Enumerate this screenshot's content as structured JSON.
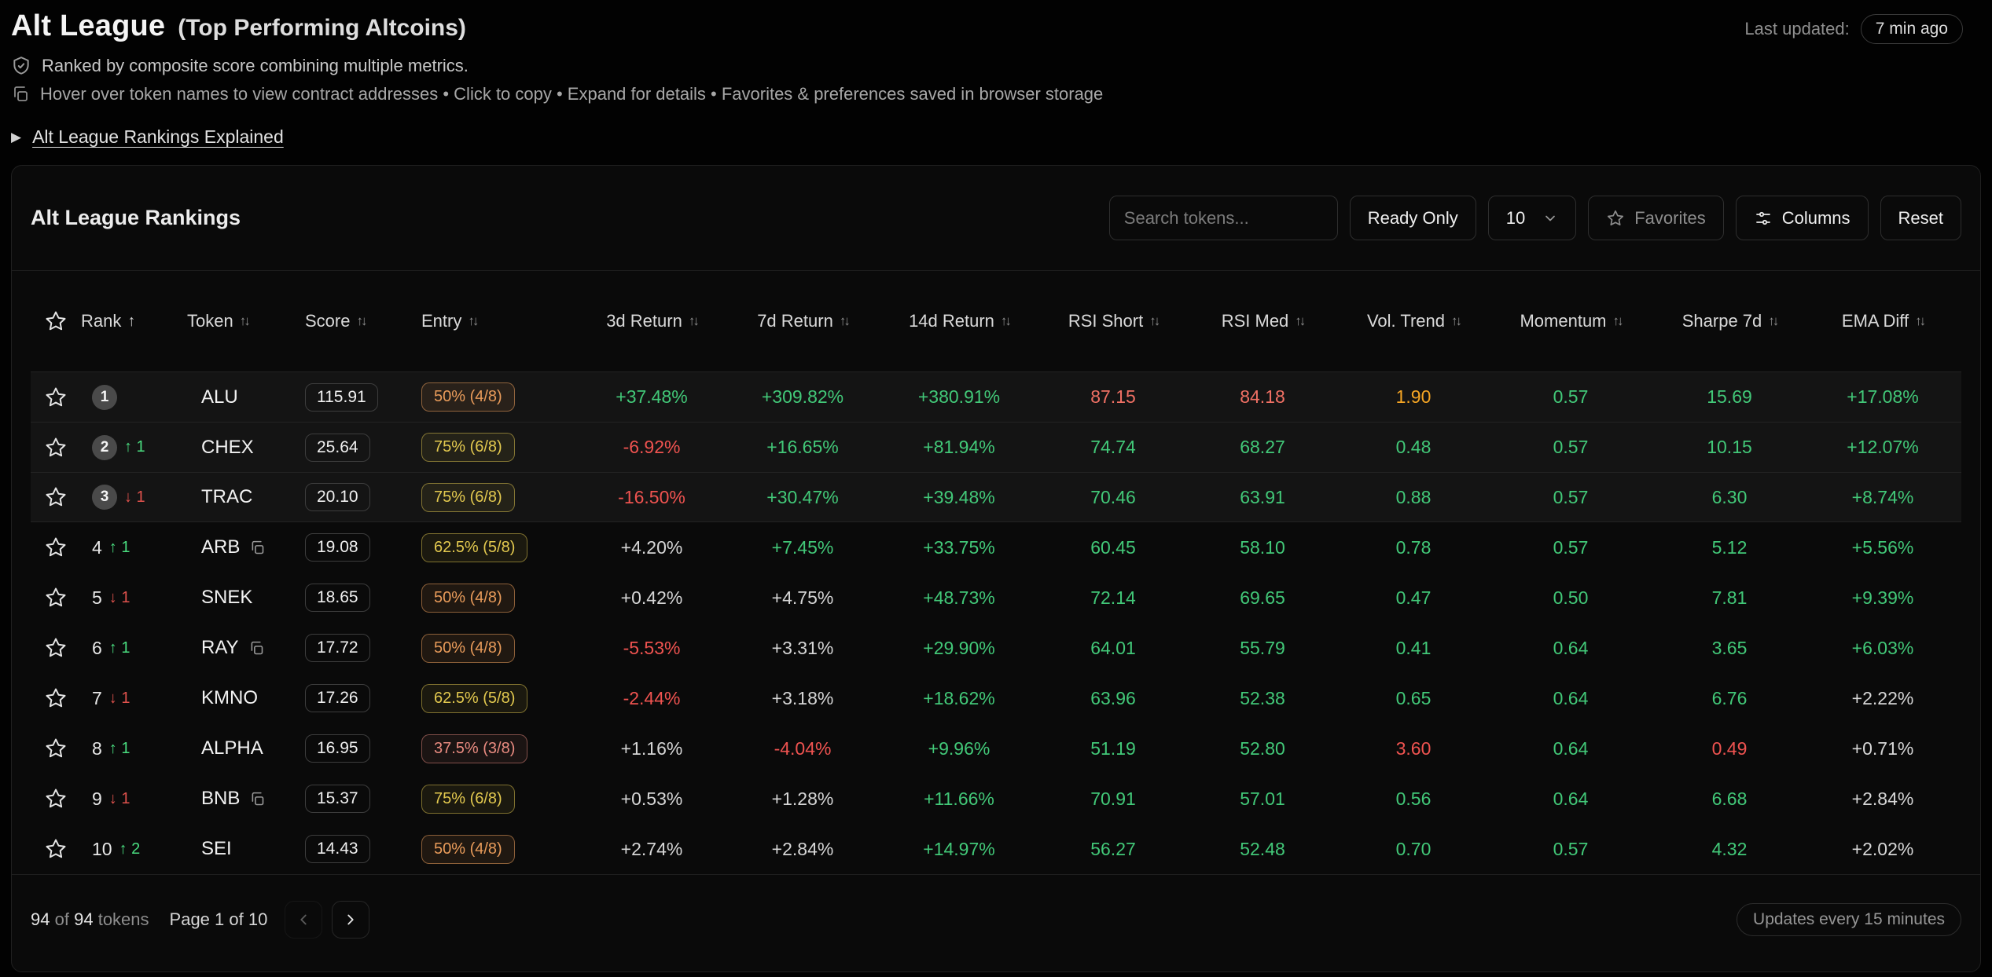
{
  "page": {
    "title": "Alt League",
    "subtitle": "(Top Performing Altcoins)",
    "last_updated_label": "Last updated:",
    "last_updated_value": "7 min ago",
    "info_primary": "Ranked by composite score combining multiple metrics.",
    "info_secondary": "Hover over token names to view contract addresses • Click to copy • Expand for details • Favorites & preferences saved in browser storage",
    "details_link": "Alt League Rankings Explained"
  },
  "card": {
    "title": "Alt League Rankings",
    "toolbar": {
      "search_placeholder": "Search tokens...",
      "ready_only_label": "Ready Only",
      "page_size": "10",
      "favorites_label": "Favorites",
      "columns_label": "Columns",
      "reset_label": "Reset"
    },
    "footer": {
      "shown_count": "94",
      "of_label": "of",
      "total_count": "94",
      "tokens_label": "tokens",
      "page_label": "Page 1 of 10",
      "updates_badge": "Updates every 15 minutes"
    }
  },
  "colors": {
    "positive_green": "#42c878",
    "negative_red": "#ef5350",
    "overbought_salmon": "#ef7064",
    "warning_orange": "#f5a524",
    "neutral_text": "#d6d6d6",
    "entry_orange": "#e89b5a",
    "entry_yellow": "#e3c94f",
    "entry_red": "#e98b80"
  },
  "table": {
    "columns": [
      {
        "id": "favorite",
        "label": "",
        "sort": null,
        "icon": "star"
      },
      {
        "id": "rank",
        "label": "Rank",
        "sort": "asc"
      },
      {
        "id": "token",
        "label": "Token",
        "sort": "both"
      },
      {
        "id": "score",
        "label": "Score",
        "sort": "both"
      },
      {
        "id": "entry",
        "label": "Entry",
        "sort": "both"
      },
      {
        "id": "return_3d",
        "label": "3d Return",
        "sort": "both"
      },
      {
        "id": "return_7d",
        "label": "7d Return",
        "sort": "both"
      },
      {
        "id": "return_14d",
        "label": "14d Return",
        "sort": "both"
      },
      {
        "id": "rsi_short",
        "label": "RSI Short",
        "sort": "both"
      },
      {
        "id": "rsi_med",
        "label": "RSI Med",
        "sort": "both"
      },
      {
        "id": "vol_trend",
        "label": "Vol. Trend",
        "sort": "both"
      },
      {
        "id": "momentum",
        "label": "Momentum",
        "sort": "both"
      },
      {
        "id": "sharpe_7d",
        "label": "Sharpe 7d",
        "sort": "both"
      },
      {
        "id": "ema_diff",
        "label": "EMA Diff",
        "sort": "both"
      }
    ],
    "rows": [
      {
        "rank": "1",
        "top3": true,
        "change": null,
        "token": "ALU",
        "copy": false,
        "score": "115.91",
        "entry": {
          "text": "50% (4/8)",
          "tone": "orange"
        },
        "cells": [
          [
            "+37.48%",
            "green"
          ],
          [
            "+309.82%",
            "green"
          ],
          [
            "+380.91%",
            "green"
          ],
          [
            "87.15",
            "salmon"
          ],
          [
            "84.18",
            "salmon"
          ],
          [
            "1.90",
            "orange"
          ],
          [
            "0.57",
            "green"
          ],
          [
            "15.69",
            "green"
          ],
          [
            "+17.08%",
            "green"
          ]
        ]
      },
      {
        "rank": "2",
        "top3": true,
        "change": {
          "dir": "up",
          "amount": "1"
        },
        "token": "CHEX",
        "copy": false,
        "score": "25.64",
        "entry": {
          "text": "75% (6/8)",
          "tone": "yellow"
        },
        "cells": [
          [
            "-6.92%",
            "red"
          ],
          [
            "+16.65%",
            "green"
          ],
          [
            "+81.94%",
            "green"
          ],
          [
            "74.74",
            "green"
          ],
          [
            "68.27",
            "green"
          ],
          [
            "0.48",
            "green"
          ],
          [
            "0.57",
            "green"
          ],
          [
            "10.15",
            "green"
          ],
          [
            "+12.07%",
            "green"
          ]
        ]
      },
      {
        "rank": "3",
        "top3": true,
        "change": {
          "dir": "down",
          "amount": "1"
        },
        "token": "TRAC",
        "copy": false,
        "score": "20.10",
        "entry": {
          "text": "75% (6/8)",
          "tone": "yellow"
        },
        "cells": [
          [
            "-16.50%",
            "red"
          ],
          [
            "+30.47%",
            "green"
          ],
          [
            "+39.48%",
            "green"
          ],
          [
            "70.46",
            "green"
          ],
          [
            "63.91",
            "green"
          ],
          [
            "0.88",
            "green"
          ],
          [
            "0.57",
            "green"
          ],
          [
            "6.30",
            "green"
          ],
          [
            "+8.74%",
            "green"
          ]
        ]
      },
      {
        "rank": "4",
        "top3": false,
        "change": {
          "dir": "up",
          "amount": "1"
        },
        "token": "ARB",
        "copy": true,
        "score": "19.08",
        "entry": {
          "text": "62.5% (5/8)",
          "tone": "yellow"
        },
        "cells": [
          [
            "+4.20%",
            "neutral"
          ],
          [
            "+7.45%",
            "green"
          ],
          [
            "+33.75%",
            "green"
          ],
          [
            "60.45",
            "green"
          ],
          [
            "58.10",
            "green"
          ],
          [
            "0.78",
            "green"
          ],
          [
            "0.57",
            "green"
          ],
          [
            "5.12",
            "green"
          ],
          [
            "+5.56%",
            "green"
          ]
        ]
      },
      {
        "rank": "5",
        "top3": false,
        "change": {
          "dir": "down",
          "amount": "1"
        },
        "token": "SNEK",
        "copy": false,
        "score": "18.65",
        "entry": {
          "text": "50% (4/8)",
          "tone": "orange"
        },
        "cells": [
          [
            "+0.42%",
            "neutral"
          ],
          [
            "+4.75%",
            "neutral"
          ],
          [
            "+48.73%",
            "green"
          ],
          [
            "72.14",
            "green"
          ],
          [
            "69.65",
            "green"
          ],
          [
            "0.47",
            "green"
          ],
          [
            "0.50",
            "green"
          ],
          [
            "7.81",
            "green"
          ],
          [
            "+9.39%",
            "green"
          ]
        ]
      },
      {
        "rank": "6",
        "top3": false,
        "change": {
          "dir": "up",
          "amount": "1"
        },
        "token": "RAY",
        "copy": true,
        "score": "17.72",
        "entry": {
          "text": "50% (4/8)",
          "tone": "orange"
        },
        "cells": [
          [
            "-5.53%",
            "red"
          ],
          [
            "+3.31%",
            "neutral"
          ],
          [
            "+29.90%",
            "green"
          ],
          [
            "64.01",
            "green"
          ],
          [
            "55.79",
            "green"
          ],
          [
            "0.41",
            "green"
          ],
          [
            "0.64",
            "green"
          ],
          [
            "3.65",
            "green"
          ],
          [
            "+6.03%",
            "green"
          ]
        ]
      },
      {
        "rank": "7",
        "top3": false,
        "change": {
          "dir": "down",
          "amount": "1"
        },
        "token": "KMNO",
        "copy": false,
        "score": "17.26",
        "entry": {
          "text": "62.5% (5/8)",
          "tone": "yellow"
        },
        "cells": [
          [
            "-2.44%",
            "red"
          ],
          [
            "+3.18%",
            "neutral"
          ],
          [
            "+18.62%",
            "green"
          ],
          [
            "63.96",
            "green"
          ],
          [
            "52.38",
            "green"
          ],
          [
            "0.65",
            "green"
          ],
          [
            "0.64",
            "green"
          ],
          [
            "6.76",
            "green"
          ],
          [
            "+2.22%",
            "neutral"
          ]
        ]
      },
      {
        "rank": "8",
        "top3": false,
        "change": {
          "dir": "up",
          "amount": "1"
        },
        "token": "ALPHA",
        "copy": false,
        "score": "16.95",
        "entry": {
          "text": "37.5% (3/8)",
          "tone": "red"
        },
        "cells": [
          [
            "+1.16%",
            "neutral"
          ],
          [
            "-4.04%",
            "red"
          ],
          [
            "+9.96%",
            "green"
          ],
          [
            "51.19",
            "green"
          ],
          [
            "52.80",
            "green"
          ],
          [
            "3.60",
            "red"
          ],
          [
            "0.64",
            "green"
          ],
          [
            "0.49",
            "red"
          ],
          [
            "+0.71%",
            "neutral"
          ]
        ]
      },
      {
        "rank": "9",
        "top3": false,
        "change": {
          "dir": "down",
          "amount": "1"
        },
        "token": "BNB",
        "copy": true,
        "score": "15.37",
        "entry": {
          "text": "75% (6/8)",
          "tone": "yellow"
        },
        "cells": [
          [
            "+0.53%",
            "neutral"
          ],
          [
            "+1.28%",
            "neutral"
          ],
          [
            "+11.66%",
            "green"
          ],
          [
            "70.91",
            "green"
          ],
          [
            "57.01",
            "green"
          ],
          [
            "0.56",
            "green"
          ],
          [
            "0.64",
            "green"
          ],
          [
            "6.68",
            "green"
          ],
          [
            "+2.84%",
            "neutral"
          ]
        ]
      },
      {
        "rank": "10",
        "top3": false,
        "change": {
          "dir": "up",
          "amount": "2"
        },
        "token": "SEI",
        "copy": false,
        "score": "14.43",
        "entry": {
          "text": "50% (4/8)",
          "tone": "orange"
        },
        "cells": [
          [
            "+2.74%",
            "neutral"
          ],
          [
            "+2.84%",
            "neutral"
          ],
          [
            "+14.97%",
            "green"
          ],
          [
            "56.27",
            "green"
          ],
          [
            "52.48",
            "green"
          ],
          [
            "0.70",
            "green"
          ],
          [
            "0.57",
            "green"
          ],
          [
            "4.32",
            "green"
          ],
          [
            "+2.02%",
            "neutral"
          ]
        ]
      }
    ]
  }
}
